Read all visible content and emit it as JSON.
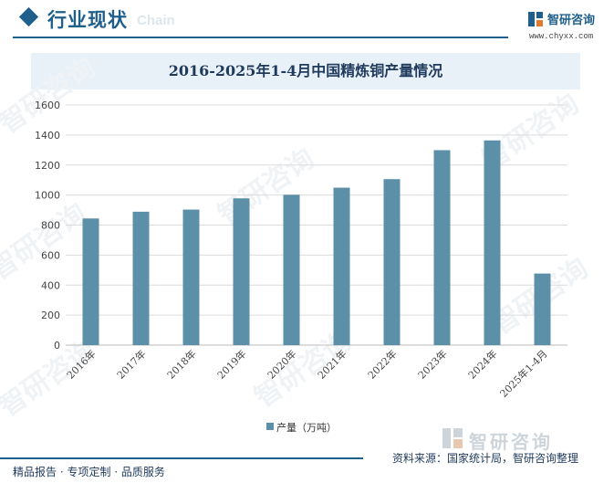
{
  "header": {
    "section_title": "行业现状",
    "ghost_text": "Chain",
    "brand_name": "智研咨询",
    "brand_url": "www.chyxx.com"
  },
  "colors": {
    "accent": "#1f5f8b",
    "bar": "#5b90a8",
    "title_band": "#e8f1f8"
  },
  "chart_data": {
    "type": "bar",
    "title": "2016-2025年1-4月中国精炼铜产量情况",
    "categories": [
      "2016年",
      "2017年",
      "2018年",
      "2019年",
      "2020年",
      "2021年",
      "2022年",
      "2023年",
      "2024年",
      "2025年1-4月"
    ],
    "series": [
      {
        "name": "产量（万吨）",
        "values": [
          844,
          889,
          903,
          978,
          1002,
          1049,
          1106,
          1299,
          1364,
          477
        ]
      }
    ],
    "xlabel": "",
    "ylabel": "",
    "ylim": [
      0,
      1600
    ],
    "yticks": [
      0,
      200,
      400,
      600,
      800,
      1000,
      1200,
      1400,
      1600
    ],
    "grid": true,
    "legend_position": "bottom"
  },
  "footer": {
    "logo_text": "智研咨询",
    "left_text": "精品报告 · 专项定制 · 品质服务",
    "right_text": "资料来源：国家统计局，智研咨询整理"
  }
}
